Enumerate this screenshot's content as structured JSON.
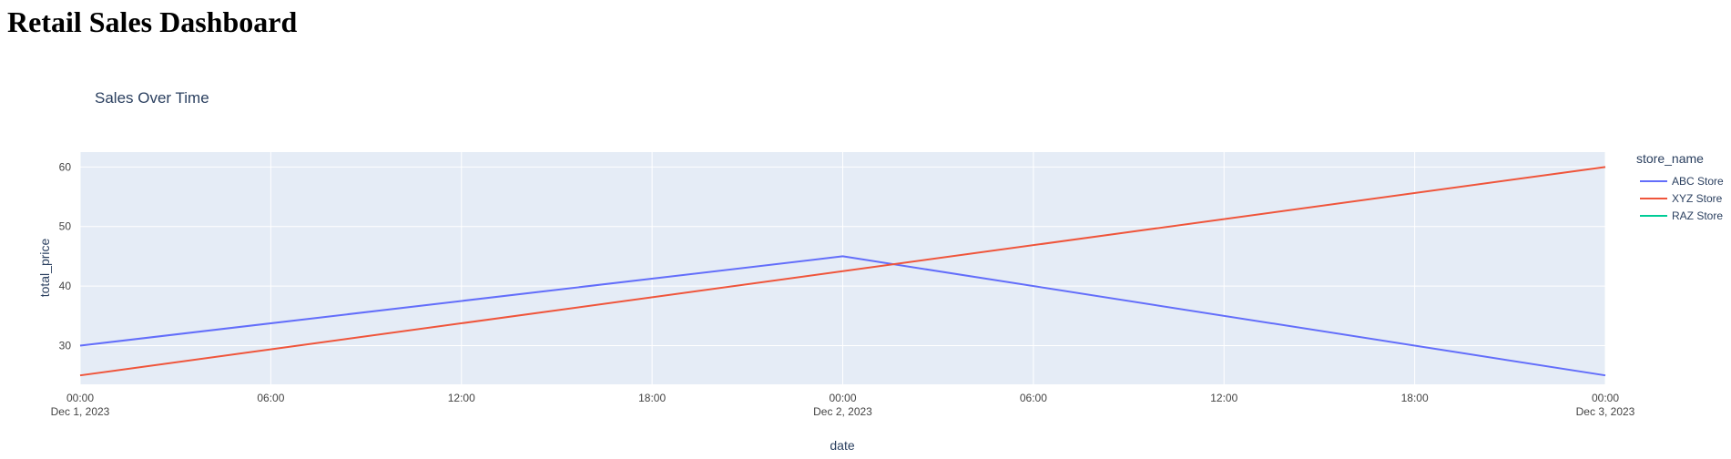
{
  "page": {
    "title": "Retail Sales Dashboard"
  },
  "chart_data": {
    "type": "line",
    "title": "Sales Over Time",
    "xlabel": "date",
    "ylabel": "total_price",
    "x": [
      "2023-12-01 00:00",
      "2023-12-02 00:00",
      "2023-12-03 00:00"
    ],
    "xlim": [
      "2023-12-01 00:00",
      "2023-12-03 00:00"
    ],
    "ylim": [
      23.5,
      62.5
    ],
    "yticks": [
      30,
      40,
      50,
      60
    ],
    "xticks": [
      {
        "at": "2023-12-01 00:00",
        "label": "00:00",
        "sublabel": "Dec 1, 2023"
      },
      {
        "at": "2023-12-01 06:00",
        "label": "06:00",
        "sublabel": ""
      },
      {
        "at": "2023-12-01 12:00",
        "label": "12:00",
        "sublabel": ""
      },
      {
        "at": "2023-12-01 18:00",
        "label": "18:00",
        "sublabel": ""
      },
      {
        "at": "2023-12-02 00:00",
        "label": "00:00",
        "sublabel": "Dec 2, 2023"
      },
      {
        "at": "2023-12-02 06:00",
        "label": "06:00",
        "sublabel": ""
      },
      {
        "at": "2023-12-02 12:00",
        "label": "12:00",
        "sublabel": ""
      },
      {
        "at": "2023-12-02 18:00",
        "label": "18:00",
        "sublabel": ""
      },
      {
        "at": "2023-12-03 00:00",
        "label": "00:00",
        "sublabel": "Dec 3, 2023"
      }
    ],
    "grid": true,
    "legend_title": "store_name",
    "legend_position": "right",
    "series": [
      {
        "name": "ABC Store",
        "color": "#636efa",
        "values": [
          30,
          45,
          25
        ]
      },
      {
        "name": "XYZ Store",
        "color": "#ef553b",
        "values": [
          25,
          null,
          60
        ]
      },
      {
        "name": "RAZ Store",
        "color": "#00cc96",
        "values": [
          null,
          null,
          null
        ]
      }
    ],
    "colors": {
      "plot_bg": "#e5ecf6",
      "grid": "#ffffff",
      "text": "#2a3f5f",
      "tick_text": "#444444"
    }
  }
}
